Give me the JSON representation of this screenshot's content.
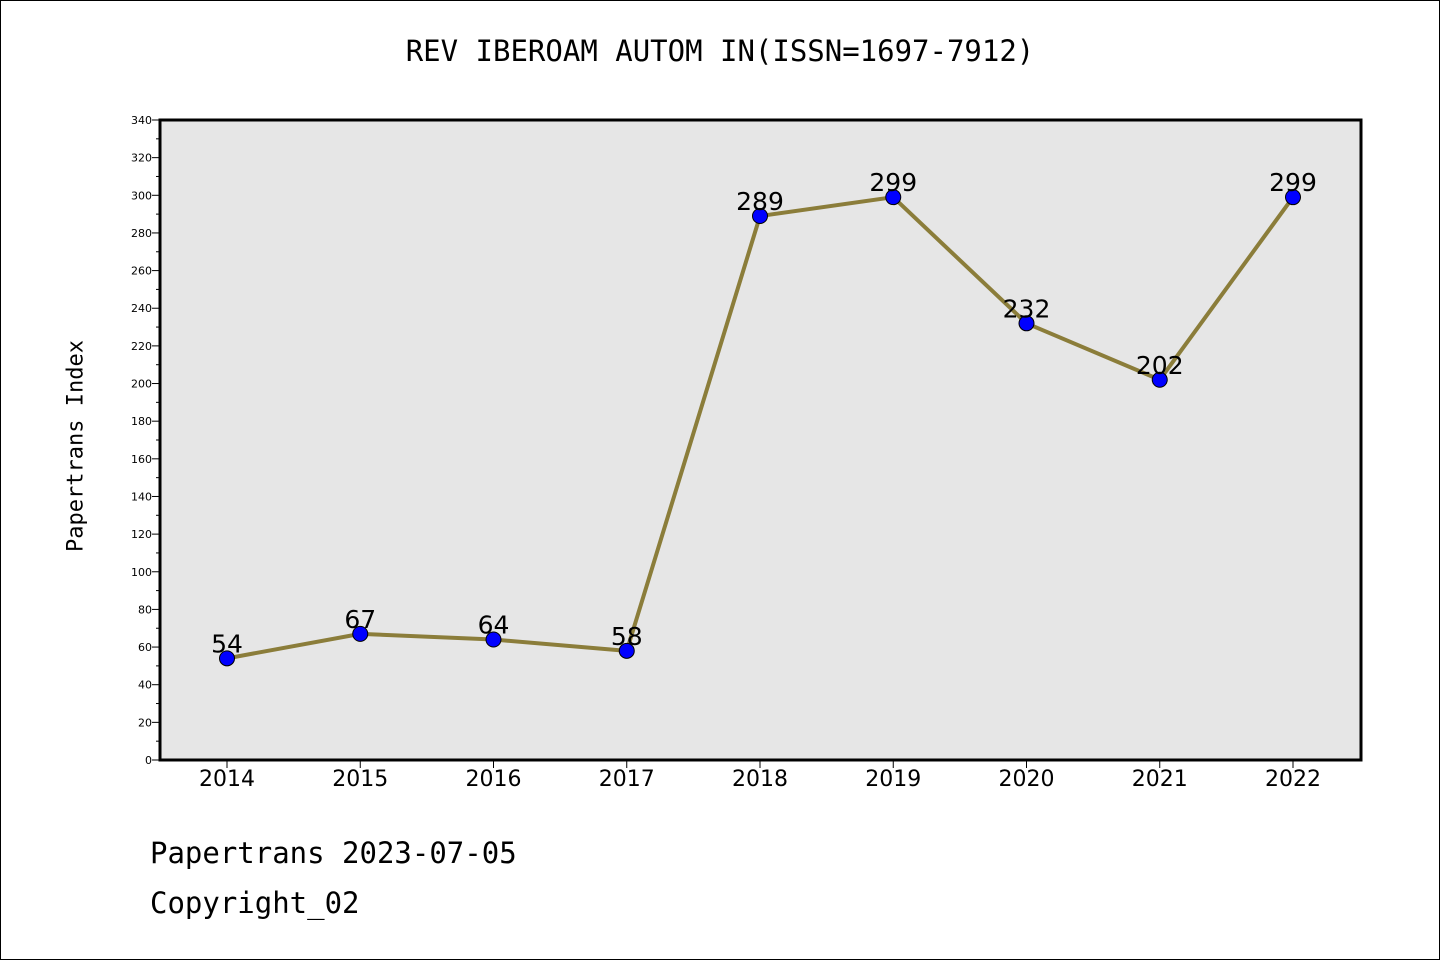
{
  "chart_data": {
    "type": "line",
    "title": "REV IBEROAM AUTOM IN(ISSN=1697-7912)",
    "xlabel": "",
    "ylabel": "Papertrans Index",
    "categories": [
      "2014",
      "2015",
      "2016",
      "2017",
      "2018",
      "2019",
      "2020",
      "2021",
      "2022"
    ],
    "series": [
      {
        "values": [
          54,
          67,
          64,
          58,
          289,
          299,
          232,
          202,
          299
        ],
        "line_color": "#8b7d3a",
        "marker_color": "#0000ff"
      }
    ],
    "ylim": [
      0,
      340
    ],
    "y_ticks": [
      "0",
      "20",
      "40",
      "60",
      "80",
      "100",
      "120",
      "140",
      "160",
      "180",
      "200",
      "220",
      "240",
      "260",
      "280",
      "300",
      "320",
      "340"
    ],
    "data_labels": [
      "54",
      "67",
      "64",
      "58",
      "289",
      "299",
      "232",
      "202",
      "299"
    ],
    "plot_background": "#e6e6e6",
    "grid": false,
    "legend": "none"
  },
  "footer": {
    "date_line": "Papertrans 2023-07-05",
    "copyright_line": "Copyright_02"
  }
}
